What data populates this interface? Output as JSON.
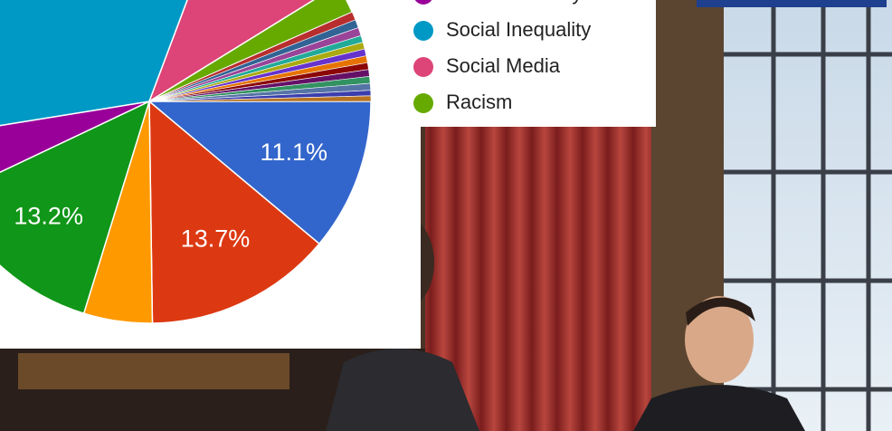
{
  "chart_data": {
    "type": "pie",
    "categories": [
      null,
      null,
      null,
      null,
      "Gender Identity",
      "Social Inequality",
      "Social Media",
      "Racism",
      null,
      null,
      null,
      null,
      null,
      null,
      null,
      null,
      null,
      null,
      null,
      null,
      null
    ],
    "values": [
      11.1,
      13.7,
      5.0,
      13.2,
      4.5,
      33.3,
      10.5,
      2.2,
      0.6,
      0.6,
      0.6,
      0.5,
      0.5,
      0.5,
      0.5,
      0.5,
      0.5,
      0.5,
      0.5,
      0.4,
      0.4
    ],
    "value_labels": [
      "11.1%",
      "13.7%",
      null,
      "13.2%",
      null,
      null,
      null,
      null,
      null,
      null,
      null,
      null,
      null,
      null,
      null,
      null,
      null,
      null,
      null,
      null,
      null
    ],
    "colors": [
      "#3366cc",
      "#dc3912",
      "#ff9900",
      "#109618",
      "#990099",
      "#0099c6",
      "#dd4477",
      "#66aa00",
      "#b82e2e",
      "#316395",
      "#994499",
      "#22aa99",
      "#aaaa11",
      "#6633cc",
      "#e67300",
      "#8b0707",
      "#651067",
      "#329262",
      "#5574a6",
      "#3b3eac",
      "#b77322"
    ],
    "legend": "right"
  }
}
